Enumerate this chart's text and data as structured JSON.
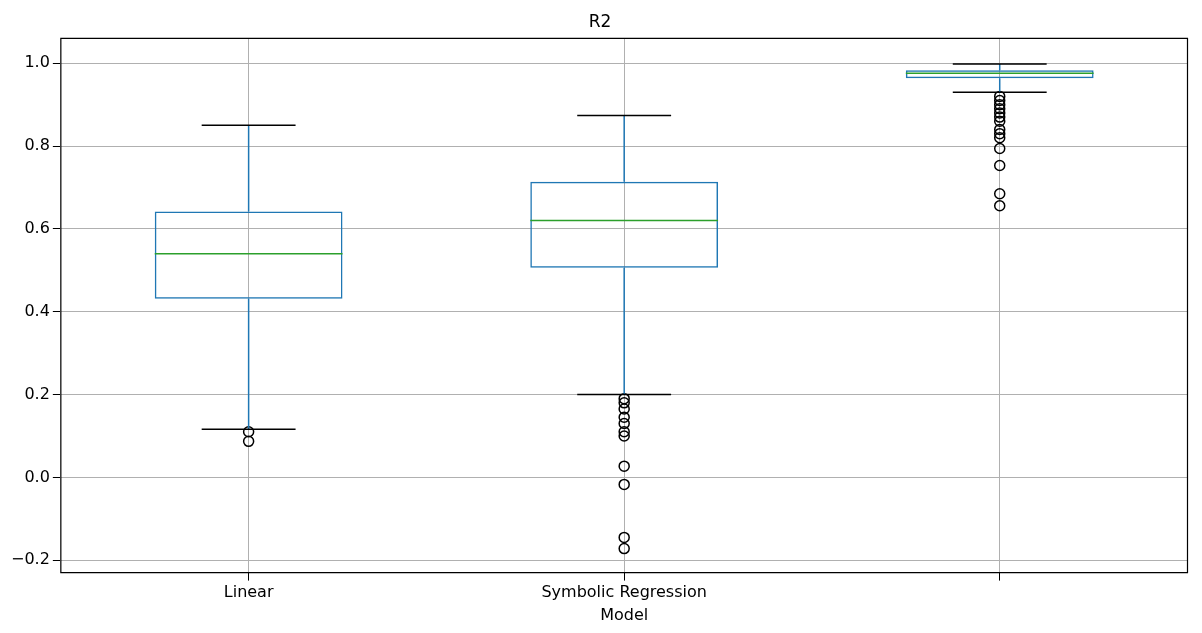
{
  "chart_data": {
    "type": "box",
    "title": "R2",
    "xlabel": "Model",
    "categories": [
      "Linear",
      "Symbolic Regression",
      null
    ],
    "boxes": [
      {
        "low": 0.116,
        "q1": 0.431,
        "median": 0.54,
        "q3": 0.642,
        "high": 0.85,
        "outliers": [
          0.11,
          0.087
        ]
      },
      {
        "low": 0.2,
        "q1": 0.506,
        "median": 0.62,
        "q3": 0.714,
        "high": 0.874,
        "outliers": [
          0.19,
          0.18,
          0.165,
          0.145,
          0.13,
          0.11,
          0.1,
          0.027,
          -0.017,
          -0.145,
          -0.172
        ]
      },
      {
        "low": 0.93,
        "q1": 0.964,
        "median": 0.976,
        "q3": 0.983,
        "high": 0.998,
        "outliers": [
          0.92,
          0.91,
          0.9,
          0.89,
          0.88,
          0.87,
          0.86,
          0.84,
          0.83,
          0.82,
          0.794,
          0.753,
          0.685,
          0.656
        ]
      }
    ],
    "color": "#1f77b4",
    "ylim": [
      -0.23,
      1.06
    ],
    "yticks": [
      -0.2,
      {
        "value": 0,
        "label": "0.0"
      },
      0.2,
      0.4,
      0.6,
      0.8,
      {
        "value": 1,
        "label": "1.0"
      }
    ],
    "grid": true,
    "marker": "circle"
  }
}
